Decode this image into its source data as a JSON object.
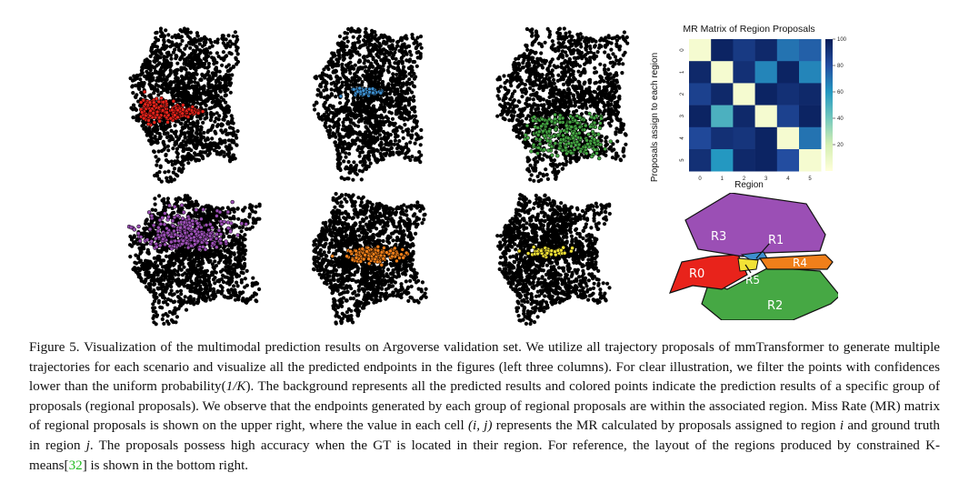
{
  "scatter_panels": [
    {
      "row": 0,
      "col": 0,
      "color": "#e8231b",
      "group": "R0"
    },
    {
      "row": 0,
      "col": 1,
      "color": "#3d8fd0",
      "group": "R1"
    },
    {
      "row": 0,
      "col": 2,
      "color": "#46a844",
      "group": "R2"
    },
    {
      "row": 1,
      "col": 0,
      "color": "#9b4fb5",
      "group": "R3"
    },
    {
      "row": 1,
      "col": 1,
      "color": "#f07f1a",
      "group": "R4"
    },
    {
      "row": 1,
      "col": 2,
      "color": "#f2e236",
      "group": "R5"
    }
  ],
  "chart_data": {
    "type": "heatmap",
    "title": "MR Matrix of Region Proposals",
    "xlabel": "Region",
    "ylabel": "Proposals  assign to each region",
    "x_ticks": [
      "0",
      "1",
      "2",
      "3",
      "4",
      "5"
    ],
    "y_ticks": [
      "0",
      "1",
      "2",
      "3",
      "4",
      "5"
    ],
    "colorbar_ticks": [
      "100",
      "80",
      "60",
      "40",
      "20"
    ],
    "colorbar_range": [
      0,
      100
    ],
    "colormap": "YlGnBu",
    "values": [
      [
        5,
        97,
        88,
        95,
        70,
        75
      ],
      [
        95,
        5,
        92,
        65,
        97,
        65
      ],
      [
        85,
        95,
        5,
        97,
        92,
        95
      ],
      [
        97,
        50,
        95,
        5,
        85,
        97
      ],
      [
        82,
        92,
        90,
        97,
        5,
        70
      ],
      [
        92,
        60,
        95,
        97,
        80,
        5
      ]
    ]
  },
  "region_layout": {
    "regions": [
      {
        "label": "R3",
        "color": "#9b4fb5"
      },
      {
        "label": "R1",
        "color": "#3d8fd0"
      },
      {
        "label": "R4",
        "color": "#f07f1a"
      },
      {
        "label": "R0",
        "color": "#e8231b"
      },
      {
        "label": "R5",
        "color": "#f2e236"
      },
      {
        "label": "R2",
        "color": "#46a844"
      }
    ]
  },
  "caption": {
    "figure_label": "Figure 5.",
    "text_1": "Visualization of the multimodal prediction results on Argoverse validation set. We utilize all trajectory proposals of mmTransformer to generate multiple trajectories for each scenario and visualize all the predicted endpoints in the figures (left three columns). For clear illustration, we filter the points with confidences lower than the uniform probability(",
    "math_1": "1/K",
    "text_2": "). The background represents all the predicted results and colored points indicate the prediction results of a specific group of proposals (regional proposals). We observe that the endpoints generated by each group of regional proposals are within the associated region. Miss Rate (MR) matrix of regional proposals is shown on the upper right, where the value in each cell ",
    "math_2": "(i, j)",
    "text_3": " represents the MR calculated by proposals assigned to region ",
    "math_3": "i",
    "text_4": " and ground truth in region ",
    "math_4": "j",
    "text_5": ". The proposals possess high accuracy when the GT is located in their region. For reference, the layout of the regions produced by constrained K-means[",
    "ref": "32",
    "text_6": "] is shown in the bottom right."
  }
}
